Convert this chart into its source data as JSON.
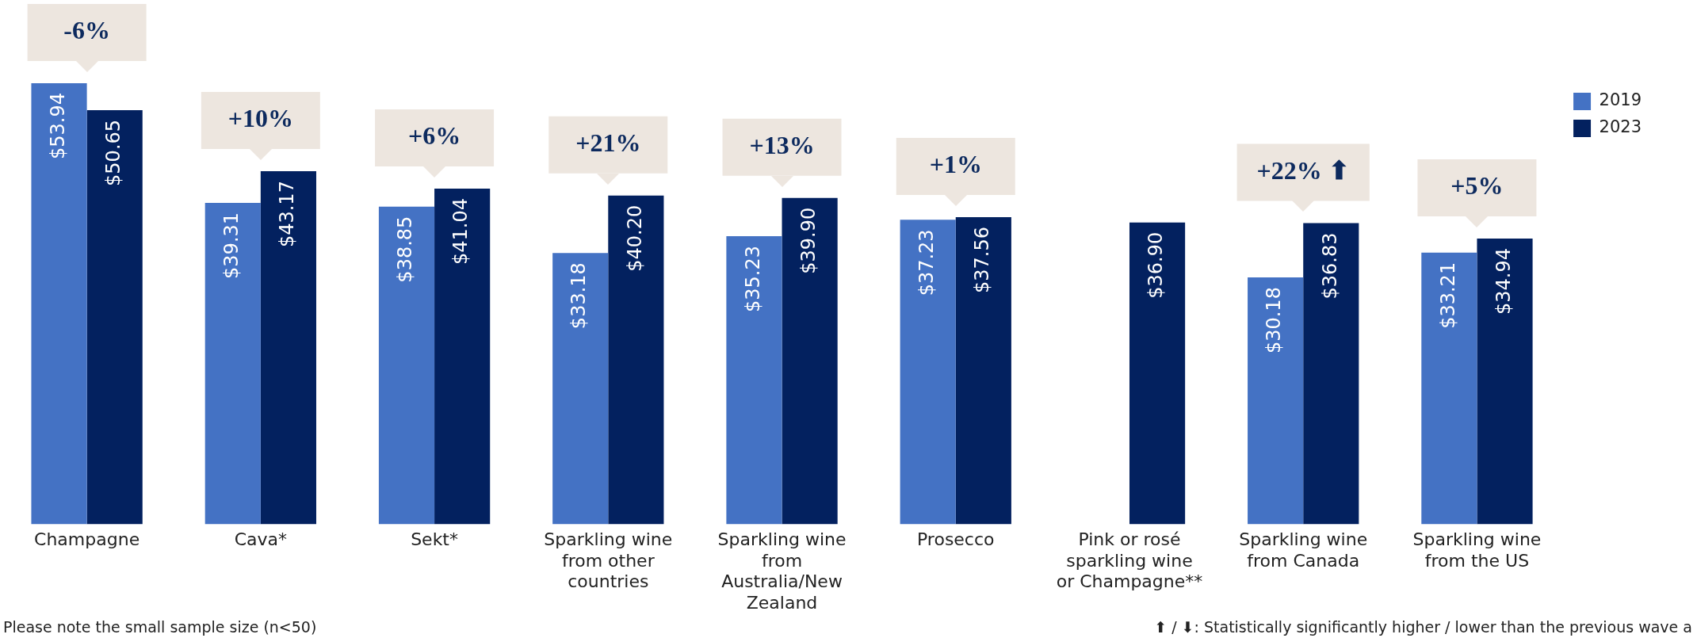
{
  "chart_data": {
    "type": "bar",
    "categories": [
      "Champagne",
      "Cava*",
      "Sekt*",
      "Sparkling wine from other countries",
      "Sparkling wine from Australia/New Zealand",
      "Prosecco",
      "Pink or rosé sparkling wine or Champagne**",
      "Sparkling wine from Canada",
      "Sparkling wine from the US"
    ],
    "series": [
      {
        "name": "2019",
        "color": "#4472c4",
        "values": [
          53.94,
          39.31,
          38.85,
          33.18,
          35.23,
          37.23,
          0,
          30.18,
          33.21
        ],
        "value_labels": [
          "$53.94",
          "$39.31",
          "$38.85",
          "$33.18",
          "$35.23",
          "$37.23",
          null,
          "$30.18",
          "$33.21"
        ]
      },
      {
        "name": "2023",
        "color": "#03215f",
        "values": [
          50.65,
          43.17,
          41.04,
          40.2,
          39.9,
          37.56,
          36.9,
          36.83,
          34.94
        ],
        "value_labels": [
          "$50.65",
          "$43.17",
          "$41.04",
          "$40.20",
          "$39.90",
          "$37.56",
          "$36.90",
          "$36.83",
          "$34.94"
        ]
      }
    ],
    "legend": "right",
    "annotations": [
      {
        "text": "-6%",
        "x": "Champagne",
        "y": 53.94
      },
      {
        "text": "+10%",
        "x": "Cava*",
        "y": 43.17
      },
      {
        "text": "+6%",
        "x": "Sekt*",
        "y": 41.04
      },
      {
        "text": "+21%",
        "x": "Sparkling wine from other countries",
        "y": 40.2
      },
      {
        "text": "+13%",
        "x": "Sparkling wine from Australia/New Zealand",
        "y": 39.9
      },
      {
        "text": "+1%",
        "x": "Prosecco",
        "y": 37.56
      },
      {
        "text": "+22% ⬆",
        "x": "Sparkling wine from Canada",
        "y": 36.83
      },
      {
        "text": "+5%",
        "x": "Sparkling wine from the US",
        "y": 34.94
      },
      "Please note the small sample size (n<50)",
      "⬆ / ⬇: Statistically significantly higher / lower than the previous wave a"
    ]
  }
}
